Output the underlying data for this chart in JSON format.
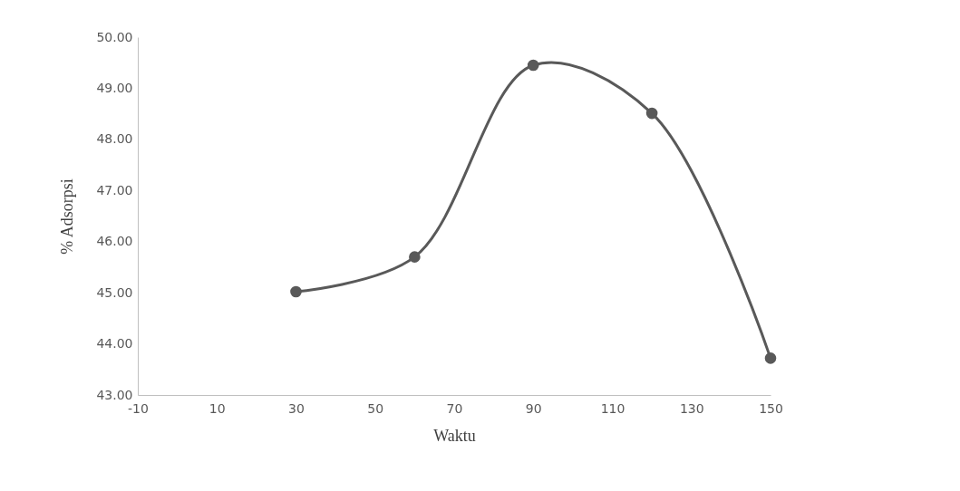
{
  "chart_data": {
    "type": "line",
    "xlabel": "Waktu",
    "ylabel": "% Adsorpsi",
    "x": [
      30,
      60,
      90,
      120,
      150
    ],
    "series": [
      {
        "color": "#595959",
        "values": [
          45.02,
          45.7,
          49.45,
          48.51,
          43.72
        ]
      }
    ],
    "xlim": [
      -10,
      150
    ],
    "xticks": [
      -10,
      10,
      30,
      50,
      70,
      90,
      110,
      130,
      150
    ],
    "ylim": [
      43,
      50
    ],
    "yticks": [
      {
        "value": 43,
        "label": "43.00"
      },
      {
        "value": 44,
        "label": "44.00"
      },
      {
        "value": 45,
        "label": "45.00"
      },
      {
        "value": 46,
        "label": "46.00"
      },
      {
        "value": 47,
        "label": "47.00"
      },
      {
        "value": 48,
        "label": "48.00"
      },
      {
        "value": 49,
        "label": "49.00"
      },
      {
        "value": 50,
        "label": "50.00"
      }
    ],
    "grid": false,
    "marker": "circle",
    "line_style": "solid"
  }
}
